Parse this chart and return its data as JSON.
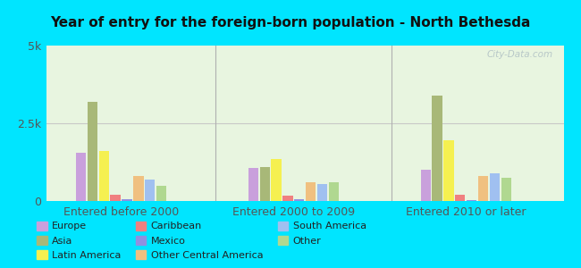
{
  "title": "Year of entry for the foreign-born population - North Bethesda",
  "groups": [
    "Entered before 2000",
    "Entered 2000 to 2009",
    "Entered 2010 or later"
  ],
  "categories": [
    "Europe",
    "Asia",
    "Latin America",
    "Caribbean",
    "Mexico",
    "Other Central America",
    "South America",
    "Other"
  ],
  "values": {
    "Entered before 2000": [
      1550,
      3200,
      1600,
      200,
      50,
      800,
      700,
      500
    ],
    "Entered 2000 to 2009": [
      1050,
      1100,
      1350,
      175,
      65,
      600,
      550,
      600
    ],
    "Entered 2010 or later": [
      1000,
      3400,
      1950,
      200,
      30,
      800,
      900,
      750
    ]
  },
  "colors": {
    "Europe": "#c9a0dc",
    "Asia": "#a8b878",
    "Latin America": "#f5f050",
    "Caribbean": "#f08080",
    "Mexico": "#9090e0",
    "Other Central America": "#f0c080",
    "South America": "#a0c0f0",
    "Other": "#b0d890"
  },
  "background_outer": "#00e5ff",
  "background_inner_top": "#e8f5e0",
  "background_inner_bottom": "#d0eec8",
  "ylim": [
    0,
    5000
  ],
  "yticks": [
    0,
    2500,
    5000
  ],
  "ytick_labels": [
    "0",
    "2.5k",
    "5k"
  ],
  "watermark": "City-Data.com",
  "legend_order": [
    "Europe",
    "Asia",
    "Latin America",
    "Caribbean",
    "Mexico",
    "Other Central America",
    "South America",
    "Other"
  ]
}
